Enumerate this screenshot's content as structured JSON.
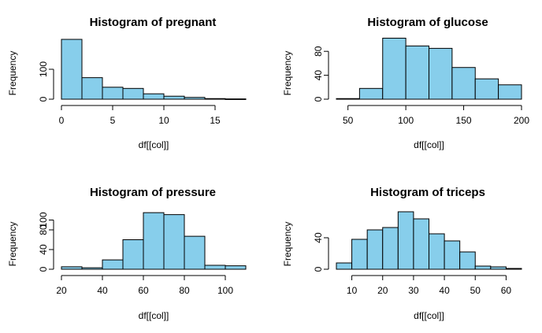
{
  "colors": {
    "bar_fill": "#87ceeb",
    "bar_stroke": "#000000",
    "axis": "#000000",
    "background": "#ffffff"
  },
  "chart_data": [
    {
      "type": "bar",
      "title": "Histogram of pregnant",
      "xlabel": "df[[col]]",
      "ylabel": "Frequency",
      "xlim": [
        0,
        18
      ],
      "ylim": [
        0,
        200
      ],
      "xticks": [
        0,
        5,
        10,
        15
      ],
      "yticks": [
        0,
        100
      ],
      "bins": [
        [
          0,
          2,
          200
        ],
        [
          2,
          4,
          72
        ],
        [
          4,
          6,
          40
        ],
        [
          6,
          8,
          36
        ],
        [
          8,
          10,
          18
        ],
        [
          10,
          12,
          10
        ],
        [
          12,
          14,
          6
        ],
        [
          14,
          16,
          2
        ],
        [
          16,
          18,
          1
        ]
      ]
    },
    {
      "type": "bar",
      "title": "Histogram of glucose",
      "xlabel": "df[[col]]",
      "ylabel": "Frequency",
      "xlim": [
        40,
        200
      ],
      "ylim": [
        0,
        100
      ],
      "xticks": [
        50,
        100,
        150,
        200
      ],
      "yticks": [
        0,
        40,
        80
      ],
      "bins": [
        [
          40,
          60,
          1
        ],
        [
          60,
          80,
          18
        ],
        [
          80,
          100,
          102
        ],
        [
          100,
          120,
          89
        ],
        [
          120,
          140,
          85
        ],
        [
          140,
          160,
          53
        ],
        [
          160,
          180,
          34
        ],
        [
          180,
          200,
          24
        ]
      ]
    },
    {
      "type": "bar",
      "title": "Histogram of pressure",
      "xlabel": "df[[col]]",
      "ylabel": "Frequency",
      "xlim": [
        20,
        110
      ],
      "ylim": [
        0,
        120
      ],
      "xticks": [
        20,
        40,
        60,
        80,
        100
      ],
      "yticks": [
        0,
        40,
        80,
        100
      ],
      "bins": [
        [
          20,
          30,
          5
        ],
        [
          30,
          40,
          3
        ],
        [
          40,
          50,
          19
        ],
        [
          50,
          60,
          60
        ],
        [
          60,
          70,
          115
        ],
        [
          70,
          80,
          111
        ],
        [
          80,
          90,
          67
        ],
        [
          90,
          100,
          8
        ],
        [
          100,
          110,
          7
        ]
      ]
    },
    {
      "type": "bar",
      "title": "Histogram of triceps",
      "xlabel": "df[[col]]",
      "ylabel": "Frequency",
      "xlim": [
        5,
        65
      ],
      "ylim": [
        0,
        75
      ],
      "xticks": [
        10,
        20,
        30,
        40,
        50,
        60
      ],
      "yticks": [
        0,
        40
      ],
      "bins": [
        [
          5,
          10,
          8
        ],
        [
          10,
          15,
          38
        ],
        [
          15,
          20,
          50
        ],
        [
          20,
          25,
          53
        ],
        [
          25,
          30,
          73
        ],
        [
          30,
          35,
          64
        ],
        [
          35,
          40,
          45
        ],
        [
          40,
          45,
          36
        ],
        [
          45,
          50,
          22
        ],
        [
          50,
          55,
          4
        ],
        [
          55,
          60,
          3
        ],
        [
          60,
          65,
          1
        ]
      ]
    }
  ]
}
